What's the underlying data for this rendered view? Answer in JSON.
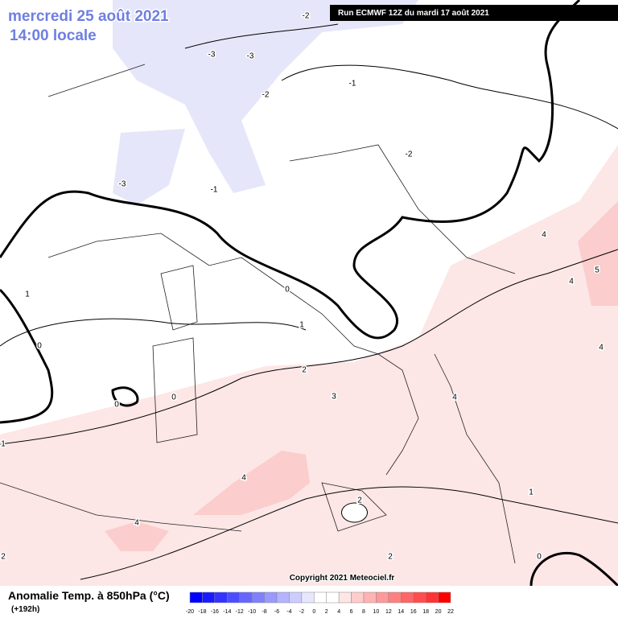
{
  "header": {
    "date": "mercredi 25 août 2021",
    "time": "14:00 locale",
    "run": "Run ECMWF 12Z du mardi 17 août 2021"
  },
  "copyright": "Copyright 2021 Meteociel.fr",
  "legend": {
    "title": "Anomalie Temp. à 850hPa (°C)",
    "lead": "(+192h)",
    "ticks": [
      -20,
      -18,
      -16,
      -14,
      -12,
      -10,
      -8,
      -6,
      -4,
      -2,
      0,
      2,
      4,
      6,
      8,
      10,
      12,
      14,
      16,
      18,
      20,
      22
    ],
    "colors": [
      "#0000ff",
      "#1a1aff",
      "#3333ff",
      "#4d4dff",
      "#6666ff",
      "#8080ff",
      "#9999ff",
      "#b3b3ff",
      "#ccccff",
      "#e6e6ff",
      "#ffffff",
      "#ffffff",
      "#ffe6e6",
      "#ffcccc",
      "#ffb3b3",
      "#ff9999",
      "#ff8080",
      "#ff6666",
      "#ff4d4d",
      "#ff3333",
      "#ff0000"
    ]
  },
  "contour_labels": [
    -2,
    -3,
    -3,
    -2,
    -1,
    -2,
    -3,
    -1,
    0,
    1,
    1,
    0,
    0,
    0,
    2,
    3,
    4,
    4,
    4,
    2,
    1,
    2,
    0,
    2,
    1,
    4,
    5,
    4,
    4
  ]
}
